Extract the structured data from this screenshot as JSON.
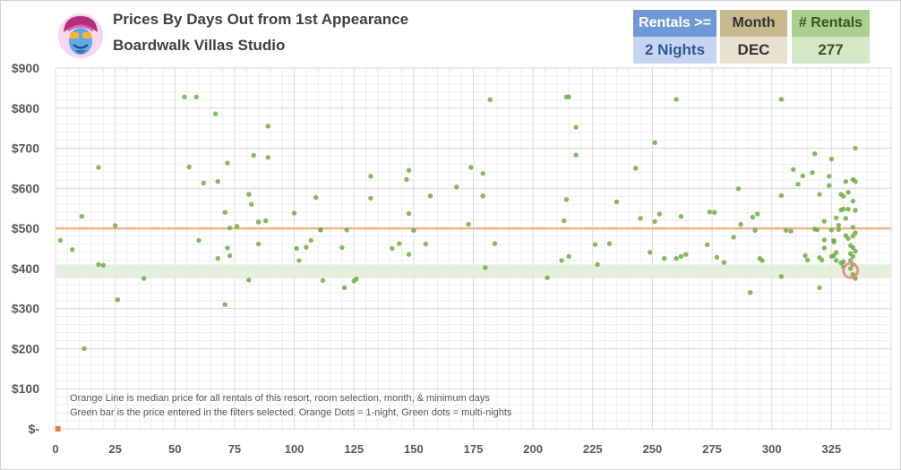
{
  "header": {
    "title": "Prices By Days Out from 1st Appearance",
    "subtitle": "Boardwalk Villas Studio"
  },
  "filters": [
    {
      "label": "Rentals >=",
      "value": "2 Nights",
      "head_bg": "#6f99d6",
      "val_bg": "#c5d7f0",
      "head_fg": "#ffffff",
      "val_fg": "#2f5597"
    },
    {
      "label": "Month",
      "value": "DEC",
      "head_bg": "#c8b98f",
      "val_bg": "#e8e1cf",
      "head_fg": "#333333",
      "val_fg": "#333333"
    },
    {
      "label": "# Rentals",
      "value": "277",
      "head_bg": "#a9d08e",
      "val_bg": "#d4e8c6",
      "head_fg": "#375623",
      "val_fg": "#375623"
    }
  ],
  "notes": [
    "Orange Line is median price for all rentals of this resort, room selection, month, & minimum days",
    "Green bar is the price entered in the filters selected. Orange Dots = 1-night, Green dots = multi-nights"
  ],
  "chart_data": {
    "type": "scatter",
    "xlim": [
      0,
      350
    ],
    "ylim": [
      0,
      900
    ],
    "x_ticks": [
      0,
      25,
      50,
      75,
      100,
      125,
      150,
      175,
      200,
      225,
      250,
      275,
      300,
      325
    ],
    "y_ticks": [
      {
        "v": 0,
        "label": "$-"
      },
      {
        "v": 100,
        "label": "$100"
      },
      {
        "v": 200,
        "label": "$200"
      },
      {
        "v": 300,
        "label": "$300"
      },
      {
        "v": 400,
        "label": "$400"
      },
      {
        "v": 500,
        "label": "$500"
      },
      {
        "v": 600,
        "label": "$600"
      },
      {
        "v": 700,
        "label": "$700"
      },
      {
        "v": 800,
        "label": "$800"
      },
      {
        "v": 900,
        "label": "$900"
      }
    ],
    "grid": true,
    "median_line": 500,
    "median_color": "#f4b183",
    "band": [
      375,
      410
    ],
    "band_color": "#e2efda",
    "dot_color": "#70ad47",
    "orange_color": "#ed7d31",
    "highlight": {
      "x": 333,
      "y": 395
    },
    "one_night": [
      [
        1,
        0
      ]
    ],
    "multi_night": [
      [
        2,
        470
      ],
      [
        7,
        447
      ],
      [
        11,
        530
      ],
      [
        12,
        200
      ],
      [
        18,
        652
      ],
      [
        18,
        410
      ],
      [
        20,
        408
      ],
      [
        25,
        507
      ],
      [
        26,
        322
      ],
      [
        37,
        375
      ],
      [
        54,
        828
      ],
      [
        56,
        653
      ],
      [
        59,
        828
      ],
      [
        60,
        470
      ],
      [
        62,
        613
      ],
      [
        67,
        786
      ],
      [
        68,
        617
      ],
      [
        68,
        425
      ],
      [
        71,
        310
      ],
      [
        71,
        540
      ],
      [
        72,
        663
      ],
      [
        72,
        451
      ],
      [
        73,
        501
      ],
      [
        73,
        432
      ],
      [
        76,
        505
      ],
      [
        81,
        585
      ],
      [
        81,
        371
      ],
      [
        82,
        560
      ],
      [
        83,
        682
      ],
      [
        85,
        516
      ],
      [
        85,
        461
      ],
      [
        88,
        519
      ],
      [
        89,
        755
      ],
      [
        89,
        677
      ],
      [
        100,
        538
      ],
      [
        101,
        450
      ],
      [
        102,
        420
      ],
      [
        105,
        453
      ],
      [
        107,
        470
      ],
      [
        109,
        577
      ],
      [
        111,
        497
      ],
      [
        111,
        496
      ],
      [
        112,
        370
      ],
      [
        120,
        452
      ],
      [
        121,
        352
      ],
      [
        122,
        496
      ],
      [
        125,
        369
      ],
      [
        126,
        374
      ],
      [
        132,
        630
      ],
      [
        132,
        575
      ],
      [
        141,
        450
      ],
      [
        144,
        462
      ],
      [
        147,
        622
      ],
      [
        148,
        645
      ],
      [
        148,
        537
      ],
      [
        148,
        435
      ],
      [
        150,
        495
      ],
      [
        155,
        461
      ],
      [
        157,
        581
      ],
      [
        168,
        603
      ],
      [
        173,
        510
      ],
      [
        174,
        652
      ],
      [
        179,
        637
      ],
      [
        179,
        581
      ],
      [
        180,
        402
      ],
      [
        182,
        821
      ],
      [
        184,
        462
      ],
      [
        206,
        377
      ],
      [
        212,
        420
      ],
      [
        213,
        519
      ],
      [
        214,
        572
      ],
      [
        214,
        828
      ],
      [
        215,
        828
      ],
      [
        215,
        430
      ],
      [
        218,
        752
      ],
      [
        218,
        683
      ],
      [
        226,
        460
      ],
      [
        227,
        410
      ],
      [
        232,
        462
      ],
      [
        235,
        566
      ],
      [
        243,
        650
      ],
      [
        245,
        525
      ],
      [
        249,
        440
      ],
      [
        251,
        714
      ],
      [
        251,
        517
      ],
      [
        253,
        536
      ],
      [
        255,
        425
      ],
      [
        260,
        822
      ],
      [
        260,
        425
      ],
      [
        262,
        530
      ],
      [
        262,
        430
      ],
      [
        264,
        435
      ],
      [
        273,
        459
      ],
      [
        274,
        541
      ],
      [
        276,
        540
      ],
      [
        277,
        428
      ],
      [
        280,
        415
      ],
      [
        284,
        478
      ],
      [
        286,
        599
      ],
      [
        287,
        510
      ],
      [
        291,
        340
      ],
      [
        292,
        528
      ],
      [
        293,
        495
      ],
      [
        294,
        536
      ],
      [
        295,
        425
      ],
      [
        296,
        420
      ],
      [
        304,
        822
      ],
      [
        304,
        582
      ],
      [
        304,
        380
      ],
      [
        306,
        495
      ],
      [
        308,
        493
      ],
      [
        309,
        647
      ],
      [
        311,
        610
      ],
      [
        313,
        631
      ],
      [
        314,
        432
      ],
      [
        315,
        421
      ],
      [
        317,
        639
      ],
      [
        318,
        686
      ],
      [
        318,
        498
      ],
      [
        319,
        497
      ],
      [
        320,
        585
      ],
      [
        320,
        427
      ],
      [
        320,
        352
      ],
      [
        321,
        421
      ],
      [
        322,
        518
      ],
      [
        322,
        451
      ],
      [
        322,
        471
      ],
      [
        324,
        630
      ],
      [
        324,
        607
      ],
      [
        325,
        673
      ],
      [
        325,
        496
      ],
      [
        325,
        430
      ],
      [
        326,
        470
      ],
      [
        326,
        466
      ],
      [
        326,
        432
      ],
      [
        327,
        526
      ],
      [
        327,
        440
      ],
      [
        327,
        420
      ],
      [
        328,
        508
      ],
      [
        328,
        497
      ],
      [
        329,
        585
      ],
      [
        329,
        546
      ],
      [
        329,
        414
      ],
      [
        330,
        580
      ],
      [
        330,
        548
      ],
      [
        330,
        417
      ],
      [
        330,
        404
      ],
      [
        331,
        617
      ],
      [
        331,
        525
      ],
      [
        331,
        482
      ],
      [
        332,
        590
      ],
      [
        332,
        548
      ],
      [
        332,
        475
      ],
      [
        333,
        457
      ],
      [
        333,
        437
      ],
      [
        333,
        420
      ],
      [
        333,
        400
      ],
      [
        334,
        622
      ],
      [
        334,
        568
      ],
      [
        334,
        503
      ],
      [
        334,
        481
      ],
      [
        334,
        452
      ],
      [
        334,
        430
      ],
      [
        334,
        410
      ],
      [
        334,
        385
      ],
      [
        335,
        700
      ],
      [
        335,
        617
      ],
      [
        335,
        545
      ],
      [
        335,
        489
      ],
      [
        335,
        443
      ],
      [
        335,
        375
      ]
    ]
  }
}
